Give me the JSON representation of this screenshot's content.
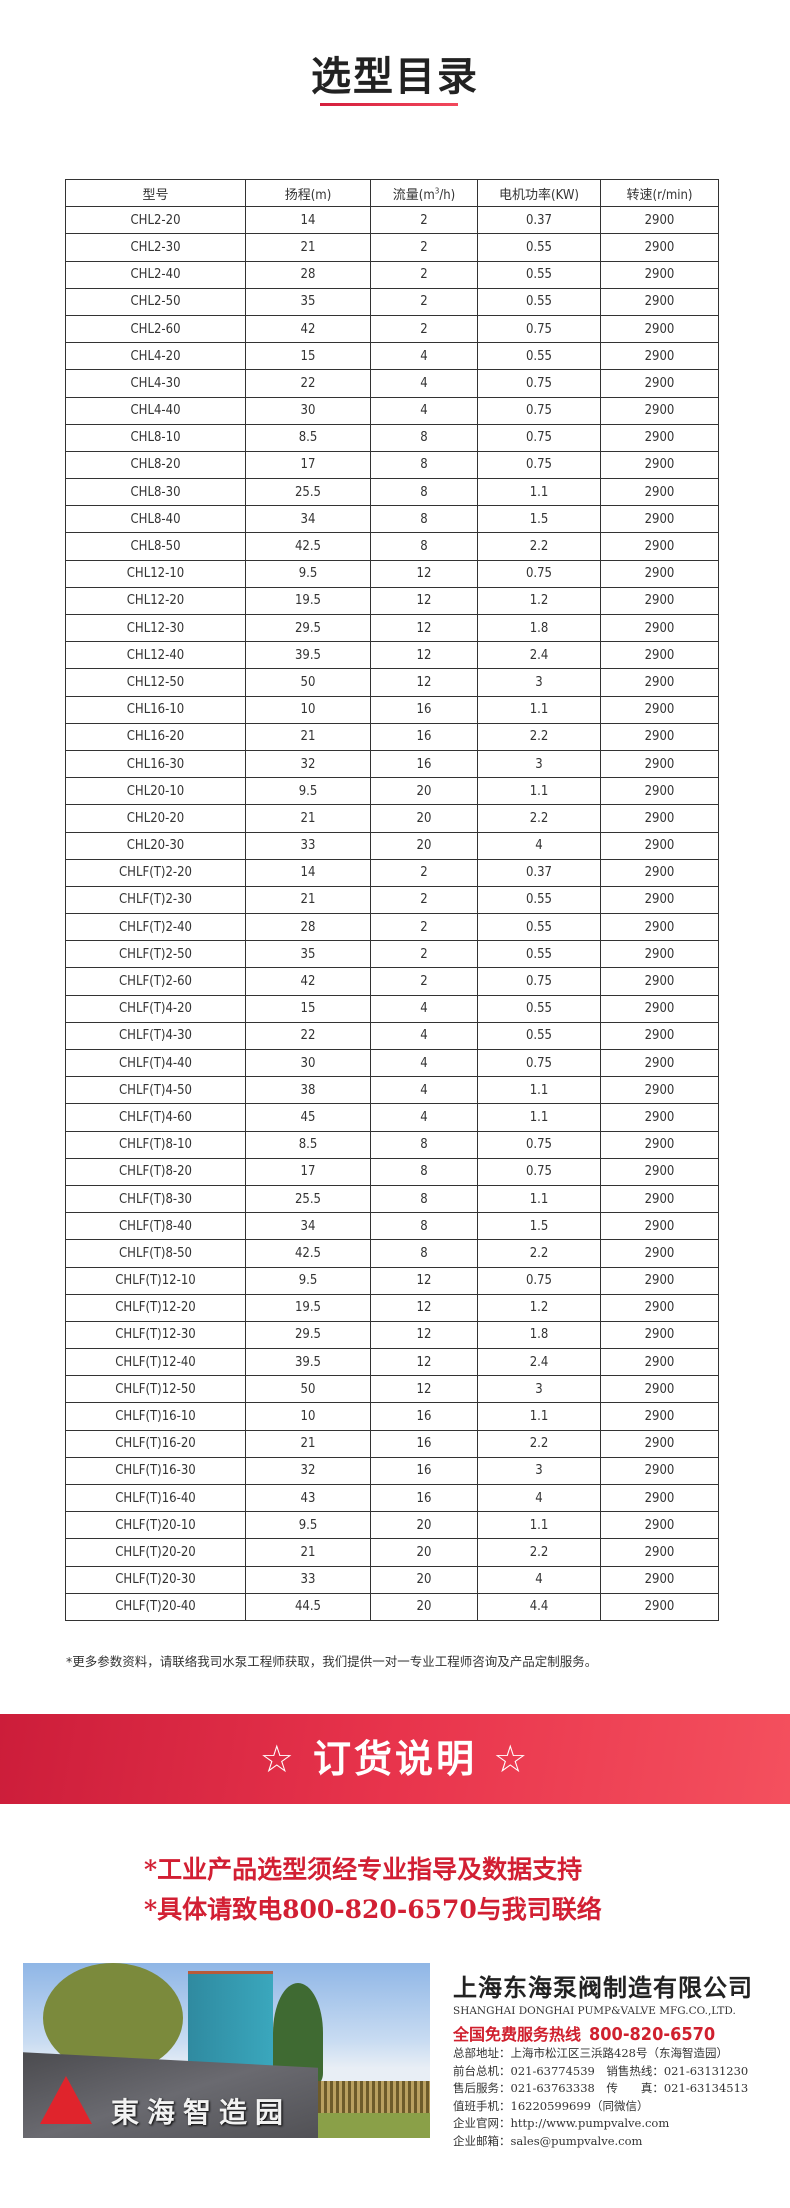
{
  "page_title": "选型目录",
  "accent_color": "#e0283f",
  "table": {
    "headers": [
      "型号",
      "扬程(m)",
      "流量(m³/h)",
      "电机功率(KW)",
      "转速(r/min)"
    ],
    "rows": [
      [
        "CHL2-20",
        "14",
        "2",
        "0.37",
        "2900"
      ],
      [
        "CHL2-30",
        "21",
        "2",
        "0.55",
        "2900"
      ],
      [
        "CHL2-40",
        "28",
        "2",
        "0.55",
        "2900"
      ],
      [
        "CHL2-50",
        "35",
        "2",
        "0.55",
        "2900"
      ],
      [
        "CHL2-60",
        "42",
        "2",
        "0.75",
        "2900"
      ],
      [
        "CHL4-20",
        "15",
        "4",
        "0.55",
        "2900"
      ],
      [
        "CHL4-30",
        "22",
        "4",
        "0.75",
        "2900"
      ],
      [
        "CHL4-40",
        "30",
        "4",
        "0.75",
        "2900"
      ],
      [
        "CHL8-10",
        "8.5",
        "8",
        "0.75",
        "2900"
      ],
      [
        "CHL8-20",
        "17",
        "8",
        "0.75",
        "2900"
      ],
      [
        "CHL8-30",
        "25.5",
        "8",
        "1.1",
        "2900"
      ],
      [
        "CHL8-40",
        "34",
        "8",
        "1.5",
        "2900"
      ],
      [
        "CHL8-50",
        "42.5",
        "8",
        "2.2",
        "2900"
      ],
      [
        "CHL12-10",
        "9.5",
        "12",
        "0.75",
        "2900"
      ],
      [
        "CHL12-20",
        "19.5",
        "12",
        "1.2",
        "2900"
      ],
      [
        "CHL12-30",
        "29.5",
        "12",
        "1.8",
        "2900"
      ],
      [
        "CHL12-40",
        "39.5",
        "12",
        "2.4",
        "2900"
      ],
      [
        "CHL12-50",
        "50",
        "12",
        "3",
        "2900"
      ],
      [
        "CHL16-10",
        "10",
        "16",
        "1.1",
        "2900"
      ],
      [
        "CHL16-20",
        "21",
        "16",
        "2.2",
        "2900"
      ],
      [
        "CHL16-30",
        "32",
        "16",
        "3",
        "2900"
      ],
      [
        "CHL20-10",
        "9.5",
        "20",
        "1.1",
        "2900"
      ],
      [
        "CHL20-20",
        "21",
        "20",
        "2.2",
        "2900"
      ],
      [
        "CHL20-30",
        "33",
        "20",
        "4",
        "2900"
      ],
      [
        "CHLF(T)2-20",
        "14",
        "2",
        "0.37",
        "2900"
      ],
      [
        "CHLF(T)2-30",
        "21",
        "2",
        "0.55",
        "2900"
      ],
      [
        "CHLF(T)2-40",
        "28",
        "2",
        "0.55",
        "2900"
      ],
      [
        "CHLF(T)2-50",
        "35",
        "2",
        "0.55",
        "2900"
      ],
      [
        "CHLF(T)2-60",
        "42",
        "2",
        "0.75",
        "2900"
      ],
      [
        "CHLF(T)4-20",
        "15",
        "4",
        "0.55",
        "2900"
      ],
      [
        "CHLF(T)4-30",
        "22",
        "4",
        "0.55",
        "2900"
      ],
      [
        "CHLF(T)4-40",
        "30",
        "4",
        "0.75",
        "2900"
      ],
      [
        "CHLF(T)4-50",
        "38",
        "4",
        "1.1",
        "2900"
      ],
      [
        "CHLF(T)4-60",
        "45",
        "4",
        "1.1",
        "2900"
      ],
      [
        "CHLF(T)8-10",
        "8.5",
        "8",
        "0.75",
        "2900"
      ],
      [
        "CHLF(T)8-20",
        "17",
        "8",
        "0.75",
        "2900"
      ],
      [
        "CHLF(T)8-30",
        "25.5",
        "8",
        "1.1",
        "2900"
      ],
      [
        "CHLF(T)8-40",
        "34",
        "8",
        "1.5",
        "2900"
      ],
      [
        "CHLF(T)8-50",
        "42.5",
        "8",
        "2.2",
        "2900"
      ],
      [
        "CHLF(T)12-10",
        "9.5",
        "12",
        "0.75",
        "2900"
      ],
      [
        "CHLF(T)12-20",
        "19.5",
        "12",
        "1.2",
        "2900"
      ],
      [
        "CHLF(T)12-30",
        "29.5",
        "12",
        "1.8",
        "2900"
      ],
      [
        "CHLF(T)12-40",
        "39.5",
        "12",
        "2.4",
        "2900"
      ],
      [
        "CHLF(T)12-50",
        "50",
        "12",
        "3",
        "2900"
      ],
      [
        "CHLF(T)16-10",
        "10",
        "16",
        "1.1",
        "2900"
      ],
      [
        "CHLF(T)16-20",
        "21",
        "16",
        "2.2",
        "2900"
      ],
      [
        "CHLF(T)16-30",
        "32",
        "16",
        "3",
        "2900"
      ],
      [
        "CHLF(T)16-40",
        "43",
        "16",
        "4",
        "2900"
      ],
      [
        "CHLF(T)20-10",
        "9.5",
        "20",
        "1.1",
        "2900"
      ],
      [
        "CHLF(T)20-20",
        "21",
        "20",
        "2.2",
        "2900"
      ],
      [
        "CHLF(T)20-30",
        "33",
        "20",
        "4",
        "2900"
      ],
      [
        "CHLF(T)20-40",
        "44.5",
        "20",
        "4.4",
        "2900"
      ]
    ]
  },
  "footnote": "*更多参数资料，请联络我司水泵工程师获取，我们提供一对一专业工程师咨询及产品定制服务。",
  "order_banner": "☆ 订货说明 ☆",
  "order_notes": [
    "*工业产品选型须经专业指导及数据支持",
    "*具体请致电800-820-6570与我司联络"
  ],
  "company": {
    "photo_sign": "東海智造园",
    "name_cn": "上海东海泵阀制造有限公司",
    "name_en": "SHANGHAI DONGHAI PUMP&VALVE MFG.CO.,LTD.",
    "hotline_label": "全国免费服务热线",
    "hotline": "800-820-6570",
    "info": [
      "总部地址：上海市松江区三浜路428号（东海智造园）",
      "前台总机：021-63774539　销售热线：021-63131230",
      "售后服务：021-63763338　传　　真：021-63134513",
      "值班手机：16220599699（同微信）",
      "企业官网：http://www.pumpvalve.com",
      "企业邮箱：sales@pumpvalve.com"
    ]
  }
}
